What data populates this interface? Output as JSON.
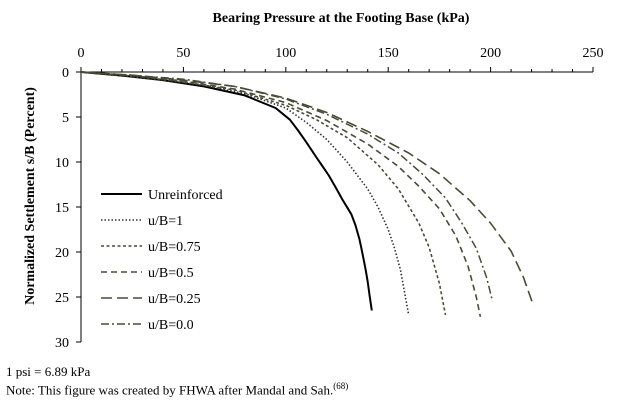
{
  "chart_data": {
    "type": "line",
    "title": "Bearing Pressure at the Footing Base (kPa)",
    "xlabel": "Bearing Pressure at the Footing Base (kPa)",
    "ylabel": "Normalized Settlement s/B (Percent)",
    "xlim": [
      0,
      250
    ],
    "ylim": [
      0,
      30
    ],
    "y_inverted": true,
    "x_axis_position": "top",
    "xticks": [
      0,
      50,
      100,
      150,
      200,
      250
    ],
    "yticks": [
      0,
      5,
      10,
      15,
      20,
      25,
      30
    ],
    "legend_position": "lower-left",
    "series": [
      {
        "name": "Unreinforced",
        "dash": "solid",
        "color": "#000000",
        "x": [
          0,
          20,
          40,
          60,
          80,
          95,
          102,
          106,
          110,
          115,
          118,
          121,
          124,
          128,
          132,
          134,
          136,
          137,
          138,
          139,
          140,
          141,
          142
        ],
        "y": [
          0,
          0.4,
          0.9,
          1.6,
          2.6,
          4.0,
          5.3,
          6.5,
          7.8,
          9.5,
          10.5,
          11.5,
          12.7,
          14.3,
          15.8,
          17.0,
          18.6,
          19.7,
          20.8,
          22.0,
          23.3,
          25.0,
          26.5
        ]
      },
      {
        "name": "u/B=1",
        "dash": "dot",
        "color": "#333333",
        "x": [
          0,
          20,
          40,
          60,
          80,
          100,
          110,
          120,
          130,
          140,
          145,
          150,
          153,
          156,
          158,
          160
        ],
        "y": [
          0,
          0.4,
          0.9,
          1.5,
          2.4,
          4.0,
          5.6,
          7.5,
          10.0,
          13.0,
          15.0,
          17.5,
          19.5,
          22.0,
          24.5,
          27.0
        ]
      },
      {
        "name": "u/B=0.75",
        "dash": "short-dash",
        "color": "#4a4a38",
        "x": [
          0,
          25,
          50,
          75,
          100,
          115,
          130,
          145,
          155,
          165,
          170,
          175,
          178
        ],
        "y": [
          0,
          0.45,
          1.1,
          2.0,
          3.7,
          5.3,
          7.3,
          10.3,
          13.0,
          16.8,
          19.5,
          23.5,
          27.0
        ]
      },
      {
        "name": "u/B=0.5",
        "dash": "dash",
        "color": "#4a4a38",
        "x": [
          0,
          25,
          50,
          75,
          100,
          120,
          140,
          155,
          165,
          175,
          183,
          189,
          193,
          195
        ],
        "y": [
          0,
          0.4,
          1.0,
          1.9,
          3.4,
          5.4,
          8.0,
          10.5,
          12.7,
          15.2,
          18.2,
          21.6,
          25.0,
          27.2
        ]
      },
      {
        "name": "u/B=0.25",
        "dash": "long-dash",
        "color": "#4a4a38",
        "x": [
          0,
          25,
          50,
          75,
          100,
          120,
          140,
          160,
          175,
          190,
          200,
          210,
          216,
          221
        ],
        "y": [
          0,
          0.35,
          0.9,
          1.6,
          2.9,
          4.5,
          6.6,
          9.0,
          11.3,
          14.3,
          16.8,
          19.9,
          22.8,
          26.0
        ]
      },
      {
        "name": "u/B=0.0",
        "dash": "dash-dot",
        "color": "#4a4a38",
        "x": [
          0,
          25,
          50,
          75,
          100,
          120,
          140,
          155,
          167,
          178,
          186,
          193,
          198,
          201
        ],
        "y": [
          0,
          0.35,
          0.8,
          1.6,
          3.0,
          4.7,
          6.9,
          9.0,
          11.4,
          14.0,
          16.8,
          19.6,
          22.8,
          25.5
        ]
      }
    ]
  },
  "notes": {
    "conversion": "1 psi = 6.89 kPa",
    "source": "Note: This figure was created by FHWA after Mandal and Sah.",
    "reference": "(68)"
  }
}
